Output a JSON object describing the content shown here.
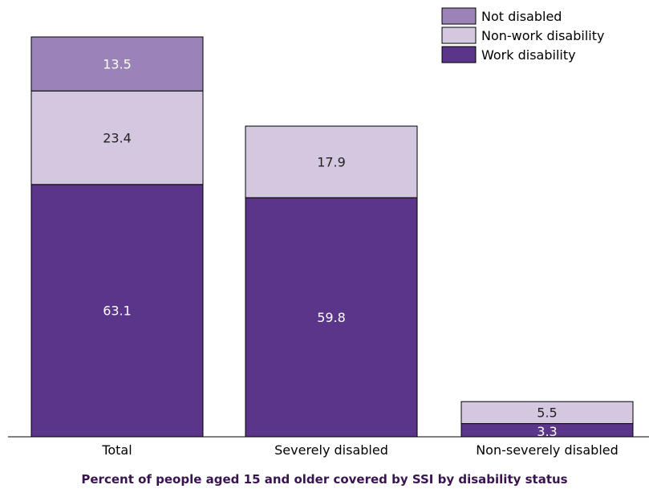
{
  "chart_data": {
    "type": "bar",
    "stacked": true,
    "caption": "Percent of people aged 15 and older covered by SSI by disability status",
    "categories": [
      "Total",
      "Severely disabled",
      "Non-severely disabled"
    ],
    "series": [
      {
        "name": "Work disability",
        "color": "#5b3589",
        "values": [
          63.1,
          59.8,
          3.3
        ]
      },
      {
        "name": "Non-work disability",
        "color": "#d4c7e0",
        "values": [
          23.4,
          17.9,
          5.5
        ]
      },
      {
        "name": "Not disabled",
        "color": "#9b83b8",
        "values": [
          13.5,
          null,
          null
        ]
      }
    ],
    "value_labels": [
      [
        "63.1",
        "59.8",
        "3.3"
      ],
      [
        "23.4",
        "17.9",
        "5.5"
      ],
      [
        "13.5",
        "",
        ""
      ]
    ],
    "legend_order": [
      "Not disabled",
      "Non-work disability",
      "Work disability"
    ],
    "legend_position": "top-right",
    "ylim": [
      0,
      100
    ],
    "grid": false
  }
}
